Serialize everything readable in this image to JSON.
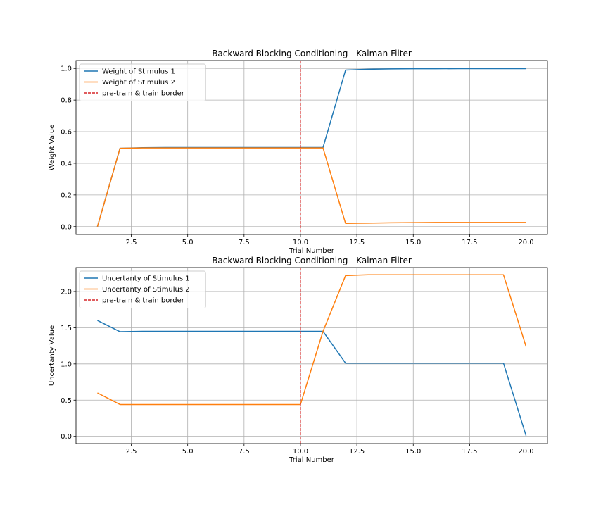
{
  "chart_data": [
    {
      "type": "line",
      "title": "Backward Blocking Conditioning - Kalman Filter",
      "xlabel": "Trial Number",
      "ylabel": "Weight Value",
      "xlim": [
        0.05,
        20.95
      ],
      "ylim": [
        -0.05,
        1.05
      ],
      "xticks": [
        2.5,
        5.0,
        7.5,
        10.0,
        12.5,
        15.0,
        17.5,
        20.0
      ],
      "xtick_labels": [
        "2.5",
        "5.0",
        "7.5",
        "10.0",
        "12.5",
        "15.0",
        "17.5",
        "20.0"
      ],
      "yticks": [
        0.0,
        0.2,
        0.4,
        0.6,
        0.8,
        1.0
      ],
      "ytick_labels": [
        "0.0",
        "0.2",
        "0.4",
        "0.6",
        "0.8",
        "1.0"
      ],
      "grid": true,
      "legend_position": "top-left",
      "x": [
        1,
        2,
        3,
        4,
        5,
        6,
        7,
        8,
        9,
        10,
        11,
        12,
        13,
        14,
        15,
        16,
        17,
        18,
        19,
        20
      ],
      "series": [
        {
          "name": "Weight of Stimulus 1",
          "color": "#1f77b4",
          "style": "solid",
          "values": [
            0.0,
            0.495,
            0.499,
            0.5,
            0.5,
            0.5,
            0.5,
            0.5,
            0.5,
            0.5,
            0.5,
            0.99,
            0.995,
            0.997,
            0.998,
            0.998,
            0.999,
            0.999,
            0.999,
            0.999
          ]
        },
        {
          "name": "Weight of Stimulus 2",
          "color": "#ff7f0e",
          "style": "solid",
          "values": [
            0.0,
            0.495,
            0.497,
            0.497,
            0.497,
            0.497,
            0.497,
            0.497,
            0.497,
            0.497,
            0.497,
            0.02,
            0.022,
            0.024,
            0.025,
            0.026,
            0.026,
            0.026,
            0.026,
            0.026
          ]
        }
      ],
      "vline": {
        "name": "pre-train & train border",
        "x": 10,
        "color": "#d62728",
        "style": "dashed"
      }
    },
    {
      "type": "line",
      "title": "Backward Blocking Conditioning - Kalman Filter",
      "xlabel": "Trial Number",
      "ylabel": "Uncertanty Value",
      "xlim": [
        0.05,
        20.95
      ],
      "ylim": [
        -0.1,
        2.33
      ],
      "xticks": [
        2.5,
        5.0,
        7.5,
        10.0,
        12.5,
        15.0,
        17.5,
        20.0
      ],
      "xtick_labels": [
        "2.5",
        "5.0",
        "7.5",
        "10.0",
        "12.5",
        "15.0",
        "17.5",
        "20.0"
      ],
      "yticks": [
        0.0,
        0.5,
        1.0,
        1.5,
        2.0
      ],
      "ytick_labels": [
        "0.0",
        "0.5",
        "1.0",
        "1.5",
        "2.0"
      ],
      "grid": true,
      "legend_position": "top-left",
      "x": [
        1,
        2,
        3,
        4,
        5,
        6,
        7,
        8,
        9,
        10,
        11,
        12,
        13,
        14,
        15,
        16,
        17,
        18,
        19,
        20
      ],
      "series": [
        {
          "name": "Uncertanty of Stimulus 1",
          "color": "#1f77b4",
          "style": "solid",
          "values": [
            1.6,
            1.445,
            1.45,
            1.45,
            1.45,
            1.45,
            1.45,
            1.45,
            1.45,
            1.45,
            1.45,
            1.01,
            1.01,
            1.01,
            1.01,
            1.01,
            1.01,
            1.01,
            1.01,
            0.01
          ]
        },
        {
          "name": "Uncertanty of Stimulus 2",
          "color": "#ff7f0e",
          "style": "solid",
          "values": [
            0.6,
            0.44,
            0.44,
            0.44,
            0.44,
            0.44,
            0.44,
            0.44,
            0.44,
            0.44,
            1.45,
            2.22,
            2.23,
            2.23,
            2.23,
            2.23,
            2.23,
            2.23,
            2.23,
            1.24
          ]
        }
      ],
      "vline": {
        "name": "pre-train & train border",
        "x": 10,
        "color": "#d62728",
        "style": "dashed"
      }
    }
  ]
}
